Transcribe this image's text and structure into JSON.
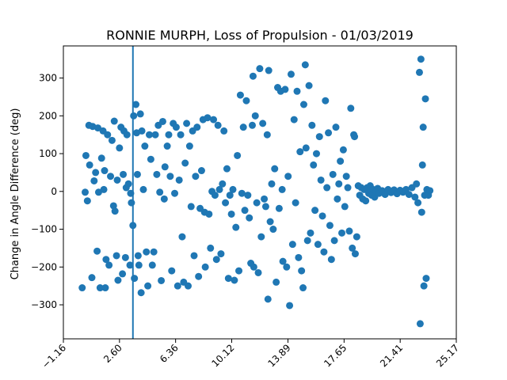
{
  "chart_data": {
    "type": "scatter",
    "title": "RONNIE MURPH, Loss of Propulsion - 01/03/2019",
    "xlabel": "",
    "ylabel": "Change in Angle Difference (deg)",
    "xlim": [
      -1.16,
      25.17
    ],
    "ylim": [
      -390,
      385
    ],
    "xticks": [
      "-1.16",
      "2.60",
      "6.36",
      "10.12",
      "13.89",
      "17.65",
      "21.41",
      "25.17"
    ],
    "yticks": [
      300,
      200,
      100,
      0,
      -100,
      -200,
      -300
    ],
    "vline_x": 3.5,
    "grid": false,
    "legend": "none",
    "color": "#1f77b4",
    "points": [
      [
        0.1,
        -255
      ],
      [
        0.3,
        -2
      ],
      [
        0.35,
        95
      ],
      [
        0.45,
        -25
      ],
      [
        0.55,
        175
      ],
      [
        0.6,
        70
      ],
      [
        0.75,
        -228
      ],
      [
        0.8,
        172
      ],
      [
        0.9,
        28
      ],
      [
        1.0,
        50
      ],
      [
        1.1,
        -158
      ],
      [
        1.15,
        168
      ],
      [
        1.2,
        -2
      ],
      [
        1.3,
        -255
      ],
      [
        1.4,
        88
      ],
      [
        1.5,
        160
      ],
      [
        1.55,
        5
      ],
      [
        1.6,
        55
      ],
      [
        1.65,
        -255
      ],
      [
        1.7,
        -180
      ],
      [
        1.8,
        150
      ],
      [
        1.9,
        -195
      ],
      [
        2.0,
        40
      ],
      [
        2.1,
        135
      ],
      [
        2.2,
        -38
      ],
      [
        2.25,
        186
      ],
      [
        2.3,
        -52
      ],
      [
        2.4,
        -170
      ],
      [
        2.45,
        30
      ],
      [
        2.5,
        -235
      ],
      [
        2.6,
        115
      ],
      [
        2.7,
        170
      ],
      [
        2.8,
        -218
      ],
      [
        2.85,
        45
      ],
      [
        2.9,
        160
      ],
      [
        3.0,
        -175
      ],
      [
        3.05,
        10
      ],
      [
        3.1,
        150
      ],
      [
        3.2,
        20
      ],
      [
        3.3,
        -195
      ],
      [
        3.35,
        -5
      ],
      [
        3.4,
        -30
      ],
      [
        3.5,
        -90
      ],
      [
        3.55,
        200
      ],
      [
        3.6,
        -230
      ],
      [
        3.7,
        230
      ],
      [
        3.75,
        155
      ],
      [
        3.8,
        45
      ],
      [
        3.85,
        -170
      ],
      [
        3.9,
        -195
      ],
      [
        4.0,
        205
      ],
      [
        4.05,
        -268
      ],
      [
        4.1,
        160
      ],
      [
        4.2,
        5
      ],
      [
        4.3,
        120
      ],
      [
        4.4,
        -160
      ],
      [
        4.5,
        -250
      ],
      [
        4.6,
        150
      ],
      [
        4.7,
        85
      ],
      [
        4.8,
        -195
      ],
      [
        4.9,
        -160
      ],
      [
        5.0,
        150
      ],
      [
        5.1,
        45
      ],
      [
        5.2,
        175
      ],
      [
        5.3,
        -2
      ],
      [
        5.4,
        -236
      ],
      [
        5.5,
        185
      ],
      [
        5.6,
        -20
      ],
      [
        5.65,
        65
      ],
      [
        5.8,
        120
      ],
      [
        5.9,
        150
      ],
      [
        6.0,
        40
      ],
      [
        6.1,
        -210
      ],
      [
        6.2,
        180
      ],
      [
        6.3,
        -5
      ],
      [
        6.4,
        170
      ],
      [
        6.5,
        -250
      ],
      [
        6.6,
        30
      ],
      [
        6.7,
        150
      ],
      [
        6.8,
        -120
      ],
      [
        6.9,
        -240
      ],
      [
        7.0,
        75
      ],
      [
        7.1,
        180
      ],
      [
        7.2,
        -250
      ],
      [
        7.3,
        120
      ],
      [
        7.4,
        -40
      ],
      [
        7.5,
        160
      ],
      [
        7.6,
        -170
      ],
      [
        7.7,
        40
      ],
      [
        7.8,
        170
      ],
      [
        7.9,
        -225
      ],
      [
        8.0,
        -45
      ],
      [
        8.1,
        55
      ],
      [
        8.2,
        190
      ],
      [
        8.3,
        -55
      ],
      [
        8.35,
        -200
      ],
      [
        8.5,
        195
      ],
      [
        8.6,
        -60
      ],
      [
        8.7,
        -150
      ],
      [
        8.8,
        0
      ],
      [
        8.9,
        190
      ],
      [
        9.0,
        -10
      ],
      [
        9.1,
        -180
      ],
      [
        9.2,
        175
      ],
      [
        9.3,
        5
      ],
      [
        9.4,
        -165
      ],
      [
        9.5,
        20
      ],
      [
        9.6,
        160
      ],
      [
        9.7,
        -30
      ],
      [
        9.8,
        60
      ],
      [
        9.9,
        -230
      ],
      [
        10.0,
        -10
      ],
      [
        10.1,
        -60
      ],
      [
        10.2,
        5
      ],
      [
        10.3,
        -235
      ],
      [
        10.4,
        -95
      ],
      [
        10.5,
        95
      ],
      [
        10.6,
        -210
      ],
      [
        10.7,
        255
      ],
      [
        10.8,
        -5
      ],
      [
        10.9,
        170
      ],
      [
        11.0,
        -50
      ],
      [
        11.1,
        240
      ],
      [
        11.2,
        -10
      ],
      [
        11.3,
        -70
      ],
      [
        11.4,
        -190
      ],
      [
        11.5,
        175
      ],
      [
        11.55,
        305
      ],
      [
        11.6,
        -200
      ],
      [
        11.7,
        200
      ],
      [
        11.8,
        -30
      ],
      [
        11.9,
        -215
      ],
      [
        12.0,
        325
      ],
      [
        12.1,
        -120
      ],
      [
        12.2,
        180
      ],
      [
        12.3,
        -20
      ],
      [
        12.4,
        -40
      ],
      [
        12.5,
        150
      ],
      [
        12.55,
        -285
      ],
      [
        12.6,
        320
      ],
      [
        12.7,
        -80
      ],
      [
        12.8,
        20
      ],
      [
        12.9,
        -100
      ],
      [
        13.0,
        60
      ],
      [
        13.1,
        -240
      ],
      [
        13.2,
        275
      ],
      [
        13.3,
        -45
      ],
      [
        13.4,
        265
      ],
      [
        13.5,
        5
      ],
      [
        13.55,
        -185
      ],
      [
        13.7,
        270
      ],
      [
        13.8,
        -200
      ],
      [
        13.9,
        40
      ],
      [
        14.0,
        -302
      ],
      [
        14.1,
        310
      ],
      [
        14.2,
        -140
      ],
      [
        14.3,
        190
      ],
      [
        14.4,
        -30
      ],
      [
        14.5,
        265
      ],
      [
        14.6,
        -175
      ],
      [
        14.7,
        105
      ],
      [
        14.8,
        -210
      ],
      [
        14.9,
        -255
      ],
      [
        14.95,
        230
      ],
      [
        15.05,
        335
      ],
      [
        15.1,
        115
      ],
      [
        15.2,
        -130
      ],
      [
        15.3,
        280
      ],
      [
        15.4,
        -110
      ],
      [
        15.5,
        175
      ],
      [
        15.6,
        70
      ],
      [
        15.7,
        -50
      ],
      [
        15.8,
        100
      ],
      [
        15.9,
        -140
      ],
      [
        16.0,
        145
      ],
      [
        16.1,
        30
      ],
      [
        16.2,
        -65
      ],
      [
        16.3,
        -160
      ],
      [
        16.4,
        240
      ],
      [
        16.5,
        10
      ],
      [
        16.6,
        155
      ],
      [
        16.7,
        -90
      ],
      [
        16.8,
        -180
      ],
      [
        16.9,
        45
      ],
      [
        17.0,
        -130
      ],
      [
        17.1,
        170
      ],
      [
        17.2,
        -20
      ],
      [
        17.3,
        20
      ],
      [
        17.4,
        80
      ],
      [
        17.5,
        -110
      ],
      [
        17.6,
        110
      ],
      [
        17.7,
        -40
      ],
      [
        17.8,
        40
      ],
      [
        17.9,
        10
      ],
      [
        18.0,
        -105
      ],
      [
        18.1,
        220
      ],
      [
        18.2,
        -150
      ],
      [
        18.3,
        150
      ],
      [
        18.35,
        145
      ],
      [
        18.4,
        -165
      ],
      [
        18.5,
        -120
      ],
      [
        18.6,
        15
      ],
      [
        18.7,
        -10
      ],
      [
        18.8,
        10
      ],
      [
        18.9,
        -20
      ],
      [
        19.0,
        5
      ],
      [
        19.1,
        -25
      ],
      [
        19.2,
        10
      ],
      [
        19.3,
        -5
      ],
      [
        19.4,
        15
      ],
      [
        19.5,
        -10
      ],
      [
        19.6,
        5
      ],
      [
        19.7,
        -15
      ],
      [
        19.8,
        0
      ],
      [
        19.9,
        8
      ],
      [
        20.0,
        -5
      ],
      [
        20.2,
        2
      ],
      [
        20.4,
        -8
      ],
      [
        20.6,
        5
      ],
      [
        20.8,
        -3
      ],
      [
        21.0,
        4
      ],
      [
        21.2,
        -6
      ],
      [
        21.4,
        3
      ],
      [
        21.6,
        -2
      ],
      [
        21.8,
        5
      ],
      [
        22.0,
        -8
      ],
      [
        22.2,
        10
      ],
      [
        22.4,
        -15
      ],
      [
        22.5,
        20
      ],
      [
        22.6,
        -30
      ],
      [
        22.7,
        315
      ],
      [
        22.75,
        -350
      ],
      [
        22.8,
        350
      ],
      [
        22.85,
        -55
      ],
      [
        22.9,
        70
      ],
      [
        22.95,
        170
      ],
      [
        23.0,
        -250
      ],
      [
        23.05,
        -10
      ],
      [
        23.1,
        245
      ],
      [
        23.15,
        -230
      ],
      [
        23.2,
        5
      ],
      [
        23.3,
        -10
      ],
      [
        23.4,
        2
      ]
    ]
  }
}
